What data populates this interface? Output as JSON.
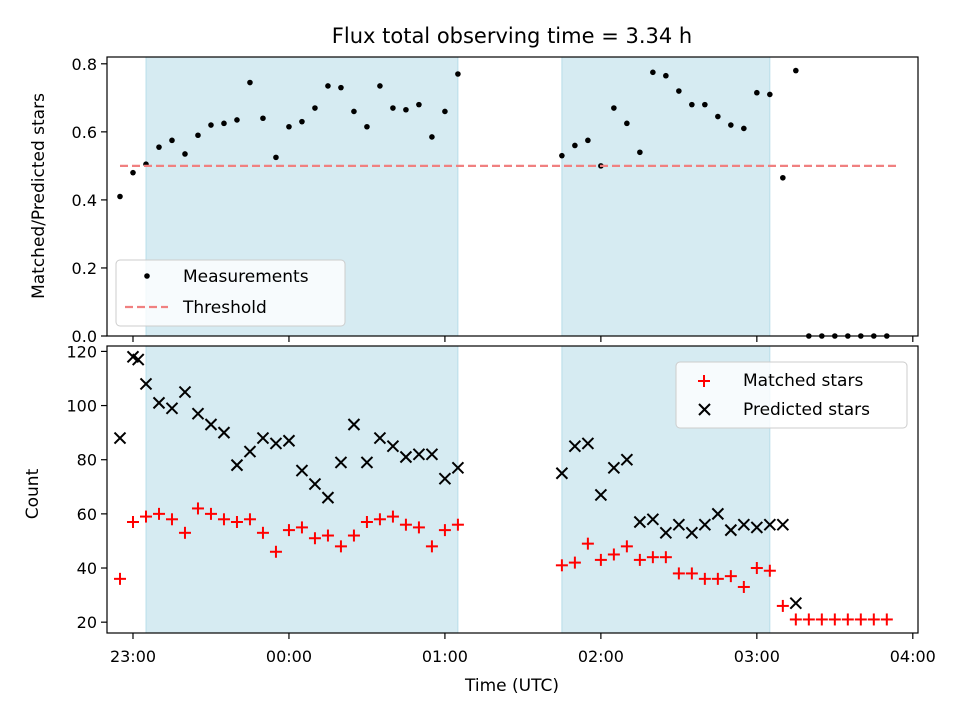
{
  "chart_data": [
    {
      "type": "scatter",
      "title": "Flux total observing time = 3.34 h",
      "ylabel": "Matched/Predicted stars",
      "xlim": [
        "22:50",
        "04:02"
      ],
      "ylim": [
        0,
        0.82
      ],
      "yticks": [
        "0.0",
        "0.2",
        "0.4",
        "0.6",
        "0.8"
      ],
      "legend_position": "lower-left",
      "observing_windows": [
        {
          "start": "23:05",
          "end": "01:05"
        },
        {
          "start": "01:45",
          "end": "03:05"
        }
      ],
      "series": [
        {
          "name": "Measurements",
          "marker": "dot",
          "color": "#000000",
          "x": [
            "22:55",
            "23:00",
            "23:05",
            "23:10",
            "23:15",
            "23:20",
            "23:25",
            "23:30",
            "23:35",
            "23:40",
            "23:45",
            "23:50",
            "23:55",
            "00:00",
            "00:05",
            "00:10",
            "00:15",
            "00:20",
            "00:25",
            "00:30",
            "00:35",
            "00:40",
            "00:45",
            "00:50",
            "00:55",
            "01:00",
            "01:05",
            "01:45",
            "01:50",
            "01:55",
            "02:00",
            "02:05",
            "02:10",
            "02:15",
            "02:20",
            "02:25",
            "02:30",
            "02:35",
            "02:40",
            "02:45",
            "02:50",
            "02:55",
            "03:00",
            "03:05",
            "03:10",
            "03:15",
            "03:20",
            "03:25",
            "03:30",
            "03:35",
            "03:40",
            "03:45",
            "03:50"
          ],
          "y": [
            0.41,
            0.48,
            0.505,
            0.555,
            0.575,
            0.535,
            0.59,
            0.62,
            0.625,
            0.635,
            0.745,
            0.64,
            0.525,
            0.615,
            0.63,
            0.67,
            0.735,
            0.73,
            0.66,
            0.615,
            0.735,
            0.67,
            0.665,
            0.68,
            0.585,
            0.66,
            0.77,
            0.53,
            0.56,
            0.575,
            0.5,
            0.67,
            0.625,
            0.54,
            0.775,
            0.765,
            0.72,
            0.68,
            0.68,
            0.645,
            0.62,
            0.61,
            0.715,
            0.71,
            0.465,
            0.78,
            0,
            0,
            0,
            0,
            0,
            0,
            0
          ]
        },
        {
          "name": "Threshold",
          "style": "dashed",
          "color": "#f08080",
          "x": [
            "22:55",
            "03:55"
          ],
          "y": [
            0.5,
            0.5
          ]
        }
      ]
    },
    {
      "type": "scatter",
      "xlabel": "Time (UTC)",
      "ylabel": "Count",
      "xlim": [
        "22:50",
        "04:02"
      ],
      "ylim": [
        16,
        122
      ],
      "xticks": [
        "23:00",
        "00:00",
        "01:00",
        "02:00",
        "03:00",
        "04:00"
      ],
      "yticks": [
        "20",
        "40",
        "60",
        "80",
        "100",
        "120"
      ],
      "legend_position": "upper-right",
      "observing_windows": [
        {
          "start": "23:05",
          "end": "01:05"
        },
        {
          "start": "01:45",
          "end": "03:05"
        }
      ],
      "series": [
        {
          "name": "Matched stars",
          "marker": "plus",
          "color": "#ff0000",
          "x": [
            "22:55",
            "23:00",
            "23:05",
            "23:10",
            "23:15",
            "23:20",
            "23:25",
            "23:30",
            "23:35",
            "23:40",
            "23:45",
            "23:50",
            "23:55",
            "00:00",
            "00:05",
            "00:10",
            "00:15",
            "00:20",
            "00:25",
            "00:30",
            "00:35",
            "00:40",
            "00:45",
            "00:50",
            "00:55",
            "01:00",
            "01:05",
            "01:45",
            "01:50",
            "01:55",
            "02:00",
            "02:05",
            "02:10",
            "02:15",
            "02:20",
            "02:25",
            "02:30",
            "02:35",
            "02:40",
            "02:45",
            "02:50",
            "02:55",
            "03:00",
            "03:05",
            "03:10",
            "03:15",
            "03:20",
            "03:25",
            "03:30",
            "03:35",
            "03:40",
            "03:45",
            "03:50"
          ],
          "y": [
            36,
            57,
            59,
            60,
            58,
            53,
            62,
            60,
            58,
            57,
            58,
            53,
            46,
            54,
            55,
            51,
            52,
            48,
            52,
            57,
            58,
            59,
            56,
            55,
            48,
            54,
            56,
            41,
            42,
            49,
            43,
            45,
            48,
            43,
            44,
            44,
            38,
            38,
            36,
            36,
            37,
            33,
            40,
            39,
            26,
            21,
            21,
            21,
            21,
            21,
            21,
            21,
            21
          ]
        },
        {
          "name": "Predicted stars",
          "marker": "x",
          "color": "#000000",
          "x": [
            "22:55",
            "23:00",
            "23:02",
            "23:05",
            "23:10",
            "23:15",
            "23:20",
            "23:25",
            "23:30",
            "23:35",
            "23:40",
            "23:45",
            "23:50",
            "23:55",
            "00:00",
            "00:05",
            "00:10",
            "00:15",
            "00:20",
            "00:25",
            "00:30",
            "00:35",
            "00:40",
            "00:45",
            "00:50",
            "00:55",
            "01:00",
            "01:05",
            "01:45",
            "01:50",
            "01:55",
            "02:00",
            "02:05",
            "02:10",
            "02:15",
            "02:20",
            "02:25",
            "02:30",
            "02:35",
            "02:40",
            "02:45",
            "02:50",
            "02:55",
            "03:00",
            "03:05",
            "03:10",
            "03:15"
          ],
          "y": [
            88,
            118,
            117,
            108,
            101,
            99,
            105,
            97,
            93,
            90,
            78,
            83,
            88,
            86,
            87,
            76,
            71,
            66,
            79,
            93,
            79,
            88,
            85,
            81,
            82,
            82,
            73,
            77,
            75,
            85,
            86,
            67,
            77,
            80,
            57,
            58,
            53,
            56,
            53,
            56,
            60,
            54,
            56,
            55,
            56,
            56,
            27
          ]
        }
      ]
    }
  ]
}
